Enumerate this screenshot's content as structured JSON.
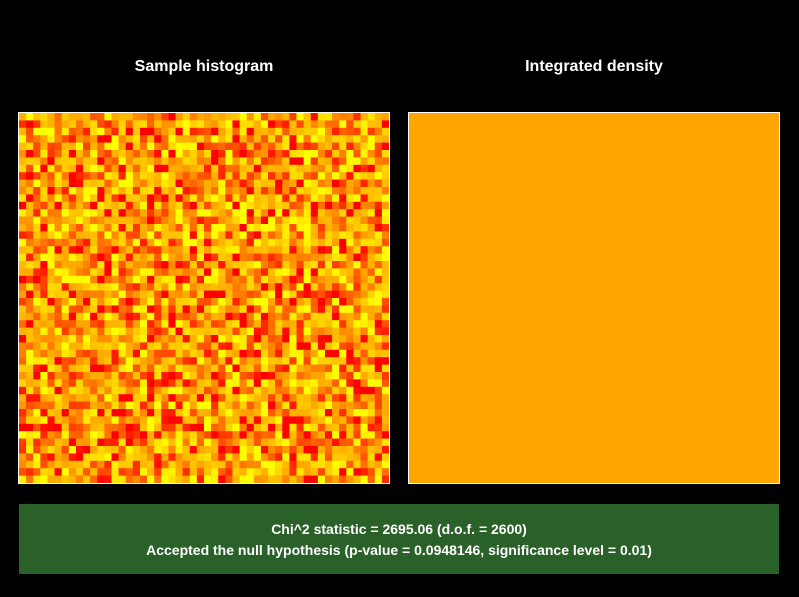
{
  "panels": {
    "left_title": "Sample histogram",
    "right_title": "Integrated density"
  },
  "result": {
    "statistic_line": "Chi^2 statistic = 2695.06 (d.o.f. = 2600)",
    "conclusion_line": "Accepted the null hypothesis (p-value = 0.0948146, significance level = 0.01)"
  },
  "colors": {
    "background": "#000000",
    "border": "#ffffff",
    "density_fill": "#ffa500",
    "result_background": "#2a6129",
    "heat_low": "#ff0000",
    "heat_mid": "#ffa500",
    "heat_high": "#ffff00",
    "heat_outlier": "#b0e000"
  },
  "chart_data": [
    {
      "type": "heatmap",
      "title": "Sample histogram",
      "grid": [
        52,
        50
      ],
      "degrees_of_freedom": 2600,
      "colormap": [
        "#ff0000",
        "#ffa500",
        "#ffff00"
      ],
      "values_note_range": [
        0.0,
        1.0
      ]
    },
    {
      "type": "heatmap",
      "title": "Integrated density",
      "uniform_value": 0.5,
      "fill": "#ffa500"
    }
  ]
}
